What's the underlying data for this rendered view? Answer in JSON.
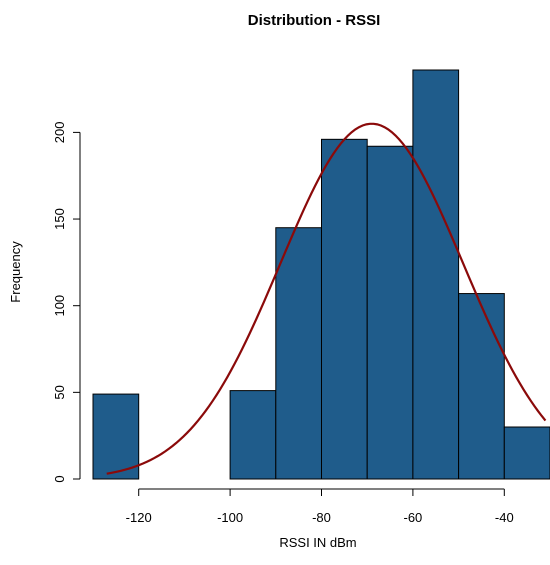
{
  "chart_data": {
    "type": "bar",
    "title": "Distribution - RSSI",
    "xlabel": "RSSI IN dBm",
    "ylabel": "Frequency",
    "bins": [
      {
        "from": -130,
        "to": -120,
        "value": 49
      },
      {
        "from": -120,
        "to": -110,
        "value": 0
      },
      {
        "from": -110,
        "to": -100,
        "value": 0
      },
      {
        "from": -100,
        "to": -90,
        "value": 51
      },
      {
        "from": -90,
        "to": -80,
        "value": 145
      },
      {
        "from": -80,
        "to": -70,
        "value": 196
      },
      {
        "from": -70,
        "to": -60,
        "value": 192
      },
      {
        "from": -60,
        "to": -50,
        "value": 236
      },
      {
        "from": -50,
        "to": -40,
        "value": 107
      },
      {
        "from": -40,
        "to": -30,
        "value": 30
      }
    ],
    "xticks": [
      -120,
      -100,
      -80,
      -60,
      -40
    ],
    "yticks": [
      0,
      50,
      100,
      150,
      200
    ],
    "xlim": [
      -130,
      -30
    ],
    "ylim": [
      0,
      236
    ],
    "density_curve": {
      "type": "normal",
      "mean": -69,
      "peak": 205,
      "sd": 20,
      "from": -127,
      "to": -31
    },
    "colors": {
      "bar": "#1f5c8b",
      "curve": "#8b0a0a"
    }
  }
}
